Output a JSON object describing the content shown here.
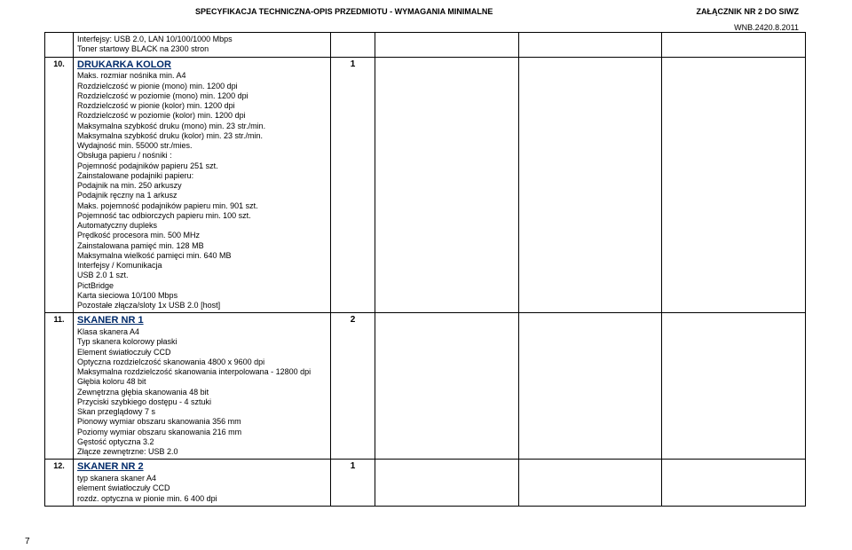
{
  "header": {
    "left": "SPECYFIKACJA TECHNICZNA-OPIS PRZEDMIOTU   - WYMAGANIA MINIMALNE",
    "right": "ZAŁĄCZNIK NR 2 DO SIWZ",
    "date": "WNB.2420.8.2011"
  },
  "pageNumber": "7",
  "rows": [
    {
      "num": "",
      "qty": "",
      "desc_lines": [
        "Interfejsy: USB 2.0, LAN 10/100/1000 Mbps",
        "Toner startowy BLACK na 2300 stron"
      ],
      "title": ""
    },
    {
      "num": "10.",
      "qty": "1",
      "title": "DRUKARKA KOLOR",
      "desc_lines": [
        "Maks. rozmiar nośnika min. A4",
        "Rozdzielczość w pionie (mono) min. 1200 dpi",
        "Rozdzielczość w poziomie (mono) min. 1200 dpi",
        "Rozdzielczość w pionie (kolor) min. 1200 dpi",
        "Rozdzielczość w poziomie (kolor) min. 1200 dpi",
        "Maksymalna szybkość druku (mono) min. 23 str./min.",
        "Maksymalna szybkość druku (kolor) min. 23 str./min.",
        "Wydajność min. 55000 str./mies.",
        "Obsługa papieru / nośniki :",
        "Pojemność podajników papieru 251 szt.",
        "Zainstalowane podajniki papieru:",
        "Podajnik na min. 250 arkuszy",
        "Podajnik ręczny na 1 arkusz",
        "Maks. pojemność podajników papieru min. 901 szt.",
        "Pojemność tac odbiorczych papieru min. 100 szt.",
        "Automatyczny dupleks",
        "Prędkość procesora min. 500 MHz",
        "Zainstalowana pamięć min. 128 MB",
        "Maksymalna wielkość pamięci min. 640 MB",
        "Interfejsy / Komunikacja",
        "USB 2.0 1 szt.",
        "PictBridge",
        "Karta sieciowa 10/100 Mbps",
        "Pozostałe złącza/sloty 1x USB 2.0 [host]"
      ]
    },
    {
      "num": "11.",
      "qty": "2",
      "title": "SKANER NR 1",
      "desc_lines": [
        "Klasa skanera A4",
        "Typ skanera    kolorowy    płaski",
        "Element światłoczuły CCD",
        "Optyczna rozdzielczość skanowania 4800 x 9600 dpi",
        "Maksymalna rozdzielczość skanowania interpolowana - 12800 dpi",
        "Głębia koloru 48 bit",
        "Zewnętrzna głębia skanowania 48 bit",
        "Przyciski szybkiego dostępu - 4 sztuki",
        "Skan przeglądowy 7 s",
        "Pionowy wymiar obszaru skanowania 356 mm",
        "Poziomy wymiar obszaru skanowania 216 mm",
        "Gęstość optyczna 3.2",
        "Złącze zewnętrzne: USB 2.0"
      ]
    },
    {
      "num": "12.",
      "qty": "1",
      "title": "SKANER NR 2",
      "desc_lines": [
        "typ skanera skaner A4",
        "element światłoczuły CCD",
        "rozdz. optyczna w pionie min. 6 400 dpi"
      ]
    }
  ]
}
